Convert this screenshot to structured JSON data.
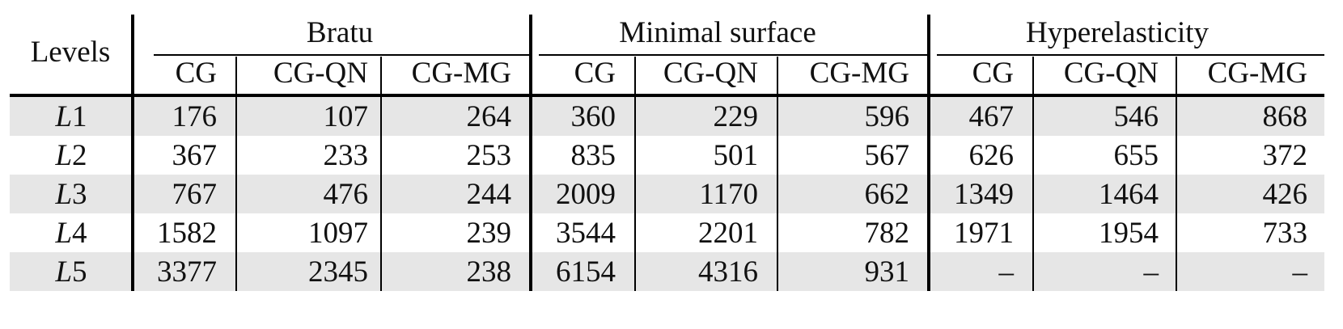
{
  "table": {
    "row_header_label": "Levels",
    "groups": [
      {
        "name": "Bratu",
        "columns": [
          "CG",
          "CG-QN",
          "CG-MG"
        ]
      },
      {
        "name": "Minimal surface",
        "columns": [
          "CG",
          "CG-QN",
          "CG-MG"
        ]
      },
      {
        "name": "Hyperelasticity",
        "columns": [
          "CG",
          "CG-QN",
          "CG-MG"
        ]
      }
    ],
    "rows": [
      {
        "level_letter": "L",
        "level_number": "1",
        "values": [
          "176",
          "107",
          "264",
          "360",
          "229",
          "596",
          "467",
          "546",
          "868"
        ]
      },
      {
        "level_letter": "L",
        "level_number": "2",
        "values": [
          "367",
          "233",
          "253",
          "835",
          "501",
          "567",
          "626",
          "655",
          "372"
        ]
      },
      {
        "level_letter": "L",
        "level_number": "3",
        "values": [
          "767",
          "476",
          "244",
          "2009",
          "1170",
          "662",
          "1349",
          "1464",
          "426"
        ]
      },
      {
        "level_letter": "L",
        "level_number": "4",
        "values": [
          "1582",
          "1097",
          "239",
          "3544",
          "2201",
          "782",
          "1971",
          "1954",
          "733"
        ]
      },
      {
        "level_letter": "L",
        "level_number": "5",
        "values": [
          "3377",
          "2345",
          "238",
          "6154",
          "4316",
          "931",
          "–",
          "–",
          "–"
        ]
      }
    ],
    "stripe_color": "#e6e6e6",
    "rule_color": "#000000"
  }
}
